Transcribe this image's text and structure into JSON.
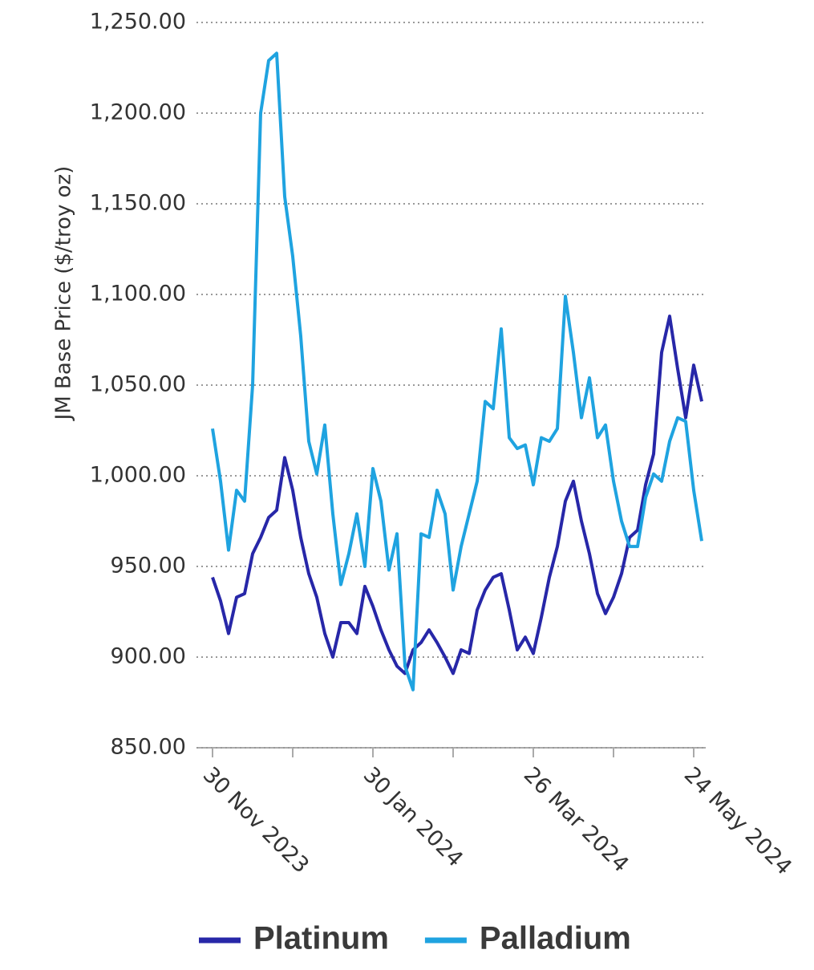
{
  "chart_data": {
    "type": "line",
    "y_label": "JM Base Price ($/troy oz)",
    "categories": [
      "30 Nov 2023",
      null,
      null,
      null,
      null,
      null,
      null,
      null,
      null,
      null,
      null,
      null,
      null,
      null,
      null,
      null,
      null,
      null,
      null,
      null,
      "30 Jan 2024",
      null,
      null,
      null,
      null,
      null,
      null,
      null,
      null,
      null,
      null,
      null,
      null,
      null,
      null,
      null,
      null,
      null,
      null,
      null,
      "26 Mar 2024",
      null,
      null,
      null,
      null,
      null,
      null,
      null,
      null,
      null,
      null,
      null,
      null,
      null,
      null,
      null,
      null,
      null,
      null,
      null,
      "24 May 2024",
      null
    ],
    "series": [
      {
        "name": "Platinum",
        "color": "#2727a8",
        "values": [
          944,
          931,
          913,
          933,
          935,
          957,
          966,
          977,
          981,
          1010,
          992,
          966,
          946,
          933,
          913,
          900,
          919,
          919,
          913,
          939,
          928,
          915,
          904,
          895,
          891,
          904,
          908,
          915,
          908,
          900,
          891,
          904,
          902,
          926,
          937,
          944,
          946,
          926,
          904,
          911,
          902,
          922,
          944,
          961,
          986,
          997,
          975,
          957,
          935,
          924,
          933,
          946,
          966,
          970,
          995,
          1012,
          1068,
          1088,
          1059,
          1032,
          1061,
          1041
        ]
      },
      {
        "name": "Palladium",
        "color": "#1fa3e0",
        "values": [
          1026,
          997,
          959,
          992,
          986,
          1050,
          1200,
          1229,
          1233,
          1154,
          1121,
          1077,
          1019,
          1001,
          1028,
          979,
          940,
          957,
          979,
          950,
          1004,
          986,
          948,
          968,
          895,
          882,
          968,
          966,
          992,
          979,
          937,
          961,
          979,
          997,
          1041,
          1037,
          1081,
          1021,
          1015,
          1017,
          995,
          1021,
          1019,
          1026,
          1099,
          1068,
          1032,
          1054,
          1021,
          1028,
          997,
          975,
          961,
          961,
          988,
          1001,
          997,
          1019,
          1032,
          1030,
          992,
          964
        ]
      }
    ],
    "ylim": [
      850,
      1250
    ],
    "yticks": [
      {
        "value": 850,
        "label": "850.00"
      },
      {
        "value": 900,
        "label": "900.00"
      },
      {
        "value": 950,
        "label": "950.00"
      },
      {
        "value": 1000,
        "label": "1,000.00"
      },
      {
        "value": 1050,
        "label": "1,050.00"
      },
      {
        "value": 1100,
        "label": "1,100.00"
      },
      {
        "value": 1150,
        "label": "1,150.00"
      },
      {
        "value": 1200,
        "label": "1,200.00"
      },
      {
        "value": 1250,
        "label": "1,250.00"
      }
    ],
    "grid": true,
    "legend": "bottom"
  }
}
